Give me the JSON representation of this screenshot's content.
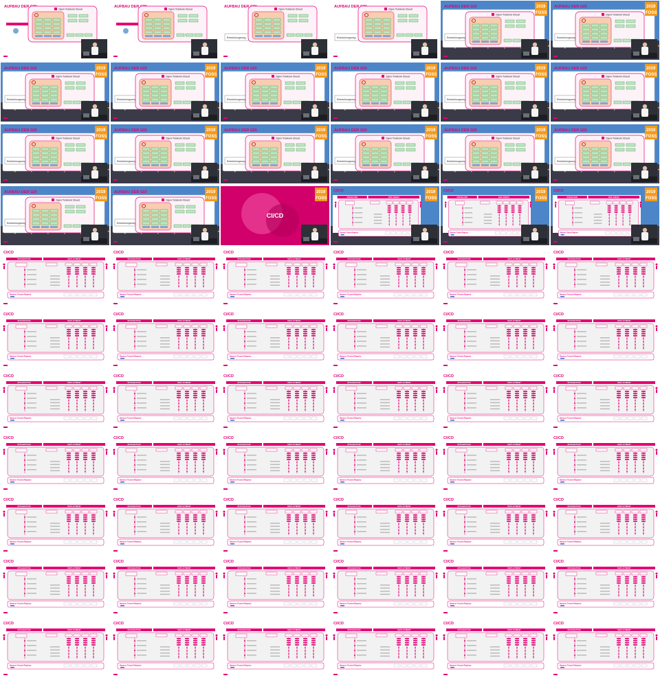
{
  "sheet": {
    "columns": 6,
    "rows": 11,
    "frames": [
      "aufbau-a",
      "aufbau-a",
      "aufbau-b",
      "aufbau-b",
      "aufbau-c",
      "aufbau-c",
      "aufbau-c",
      "aufbau-c",
      "aufbau-c",
      "aufbau-c",
      "aufbau-c",
      "aufbau-c",
      "aufbau-c",
      "aufbau-c",
      "aufbau-c",
      "aufbau-c",
      "aufbau-c",
      "aufbau-c",
      "aufbau-c",
      "aufbau-c",
      "title",
      "cicd-small",
      "cicd-small",
      "cicd-small",
      "cicd",
      "cicd",
      "cicd",
      "cicd",
      "cicd",
      "cicd",
      "cicd",
      "cicd",
      "cicd",
      "cicd",
      "cicd",
      "cicd",
      "cicd",
      "cicd",
      "cicd",
      "cicd",
      "cicd",
      "cicd",
      "cicd",
      "cicd",
      "cicd",
      "cicd",
      "cicd",
      "cicd",
      "cicd",
      "cicd",
      "cicd",
      "cicd",
      "cicd",
      "cicd",
      "cicd",
      "cicd",
      "cicd",
      "cicd",
      "cicd",
      "cicd",
      "cicd",
      "cicd",
      "cicd",
      "cicd",
      "cicd",
      "cicd"
    ]
  },
  "slides": {
    "aufbau_title": "AUFBAU DER GDI",
    "cloud_label": "Open Telekom Cloud",
    "left_box_label": "Entwicklungsumg.",
    "year": "2019",
    "conf_logo": "FOSS",
    "cicd_title": "CI/CD",
    "section_title": "CI/CD",
    "integration_label": "INTEGRATION",
    "deployment_label": "DEPLOYMENT",
    "registry_label": "Bayerns Trusted Registry",
    "telekom_mark": "T"
  },
  "colors": {
    "magenta": "#e20074",
    "pink_light": "#f7c6df",
    "orange_box": "#f8cdb0",
    "green_box": "#bfe7c4",
    "sky": "#4d86c8",
    "city": "#3a3a48",
    "presenter_bg": "#2d3036",
    "gray_panel": "#f2f2f2"
  }
}
